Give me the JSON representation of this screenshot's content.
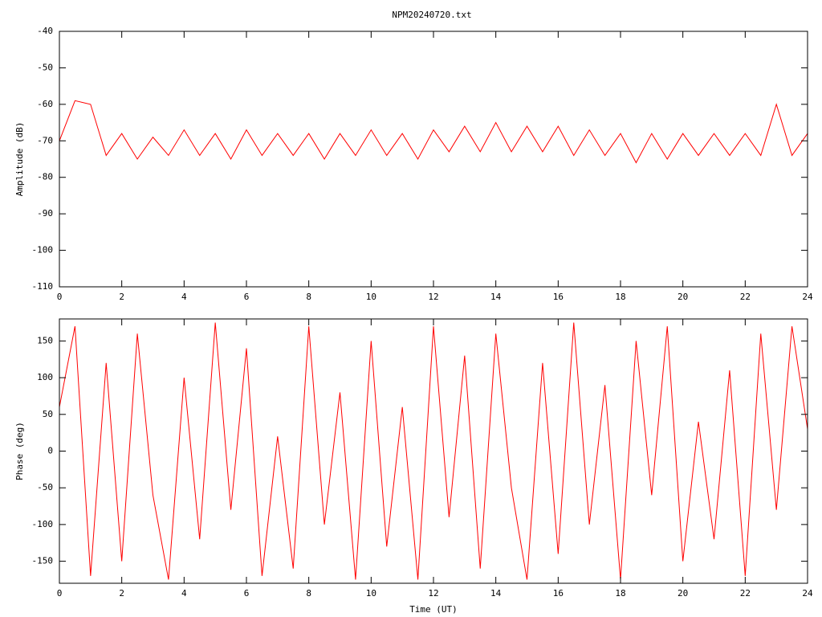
{
  "chart_data": [
    {
      "type": "line",
      "title": "NPM20240720.txt",
      "ylabel": "Amplitude (dB)",
      "color": "#ff0000",
      "xlim": [
        0,
        24
      ],
      "xticks": [
        0,
        2,
        4,
        6,
        8,
        10,
        12,
        14,
        16,
        18,
        20,
        22,
        24
      ],
      "ylim": [
        -110,
        -40
      ],
      "yticks": [
        -40,
        -50,
        -60,
        -70,
        -80,
        -90,
        -100,
        -110
      ],
      "x": [
        0,
        0.5,
        1,
        1.5,
        2,
        2.5,
        3,
        3.5,
        4,
        4.5,
        5,
        5.5,
        6,
        6.5,
        7,
        7.5,
        8,
        8.5,
        9,
        9.5,
        10,
        10.5,
        11,
        11.5,
        12,
        12.5,
        13,
        13.5,
        14,
        14.5,
        15,
        15.5,
        16,
        16.5,
        17,
        17.5,
        18,
        18.5,
        19,
        19.5,
        20,
        20.5,
        21,
        21.5,
        22,
        22.5,
        23,
        23.5,
        24
      ],
      "values": [
        -70,
        -59,
        -60,
        -74,
        -68,
        -75,
        -69,
        -74,
        -67,
        -74,
        -68,
        -75,
        -67,
        -74,
        -68,
        -74,
        -68,
        -75,
        -68,
        -74,
        -67,
        -74,
        -68,
        -75,
        -67,
        -73,
        -66,
        -73,
        -65,
        -73,
        -66,
        -73,
        -66,
        -74,
        -67,
        -74,
        -68,
        -76,
        -68,
        -75,
        -68,
        -74,
        -68,
        -74,
        -68,
        -74,
        -60,
        -74,
        -68
      ]
    },
    {
      "type": "line",
      "ylabel": "Phase (deg)",
      "xlabel": "Time (UT)",
      "color": "#ff0000",
      "xlim": [
        0,
        24
      ],
      "xticks": [
        0,
        2,
        4,
        6,
        8,
        10,
        12,
        14,
        16,
        18,
        20,
        22,
        24
      ],
      "ylim": [
        -180,
        180
      ],
      "yticks": [
        150,
        100,
        50,
        0,
        -50,
        -100,
        -150
      ],
      "x": [
        0,
        0.5,
        1,
        1.5,
        2,
        2.5,
        3,
        3.5,
        4,
        4.5,
        5,
        5.5,
        6,
        6.5,
        7,
        7.5,
        8,
        8.5,
        9,
        9.5,
        10,
        10.5,
        11,
        11.5,
        12,
        12.5,
        13,
        13.5,
        14,
        14.5,
        15,
        15.5,
        16,
        16.5,
        17,
        17.5,
        18,
        18.5,
        19,
        19.5,
        20,
        20.5,
        21,
        21.5,
        22,
        22.5,
        23,
        23.5,
        24
      ],
      "values": [
        60,
        170,
        -170,
        120,
        -150,
        160,
        -60,
        -175,
        100,
        -120,
        175,
        -80,
        140,
        -170,
        20,
        -160,
        170,
        -100,
        80,
        -175,
        150,
        -130,
        60,
        -175,
        170,
        -90,
        130,
        -160,
        160,
        -50,
        -175,
        120,
        -140,
        175,
        -100,
        90,
        -175,
        150,
        -60,
        170,
        -150,
        40,
        -120,
        110,
        -170,
        160,
        -80,
        170,
        30
      ]
    }
  ]
}
